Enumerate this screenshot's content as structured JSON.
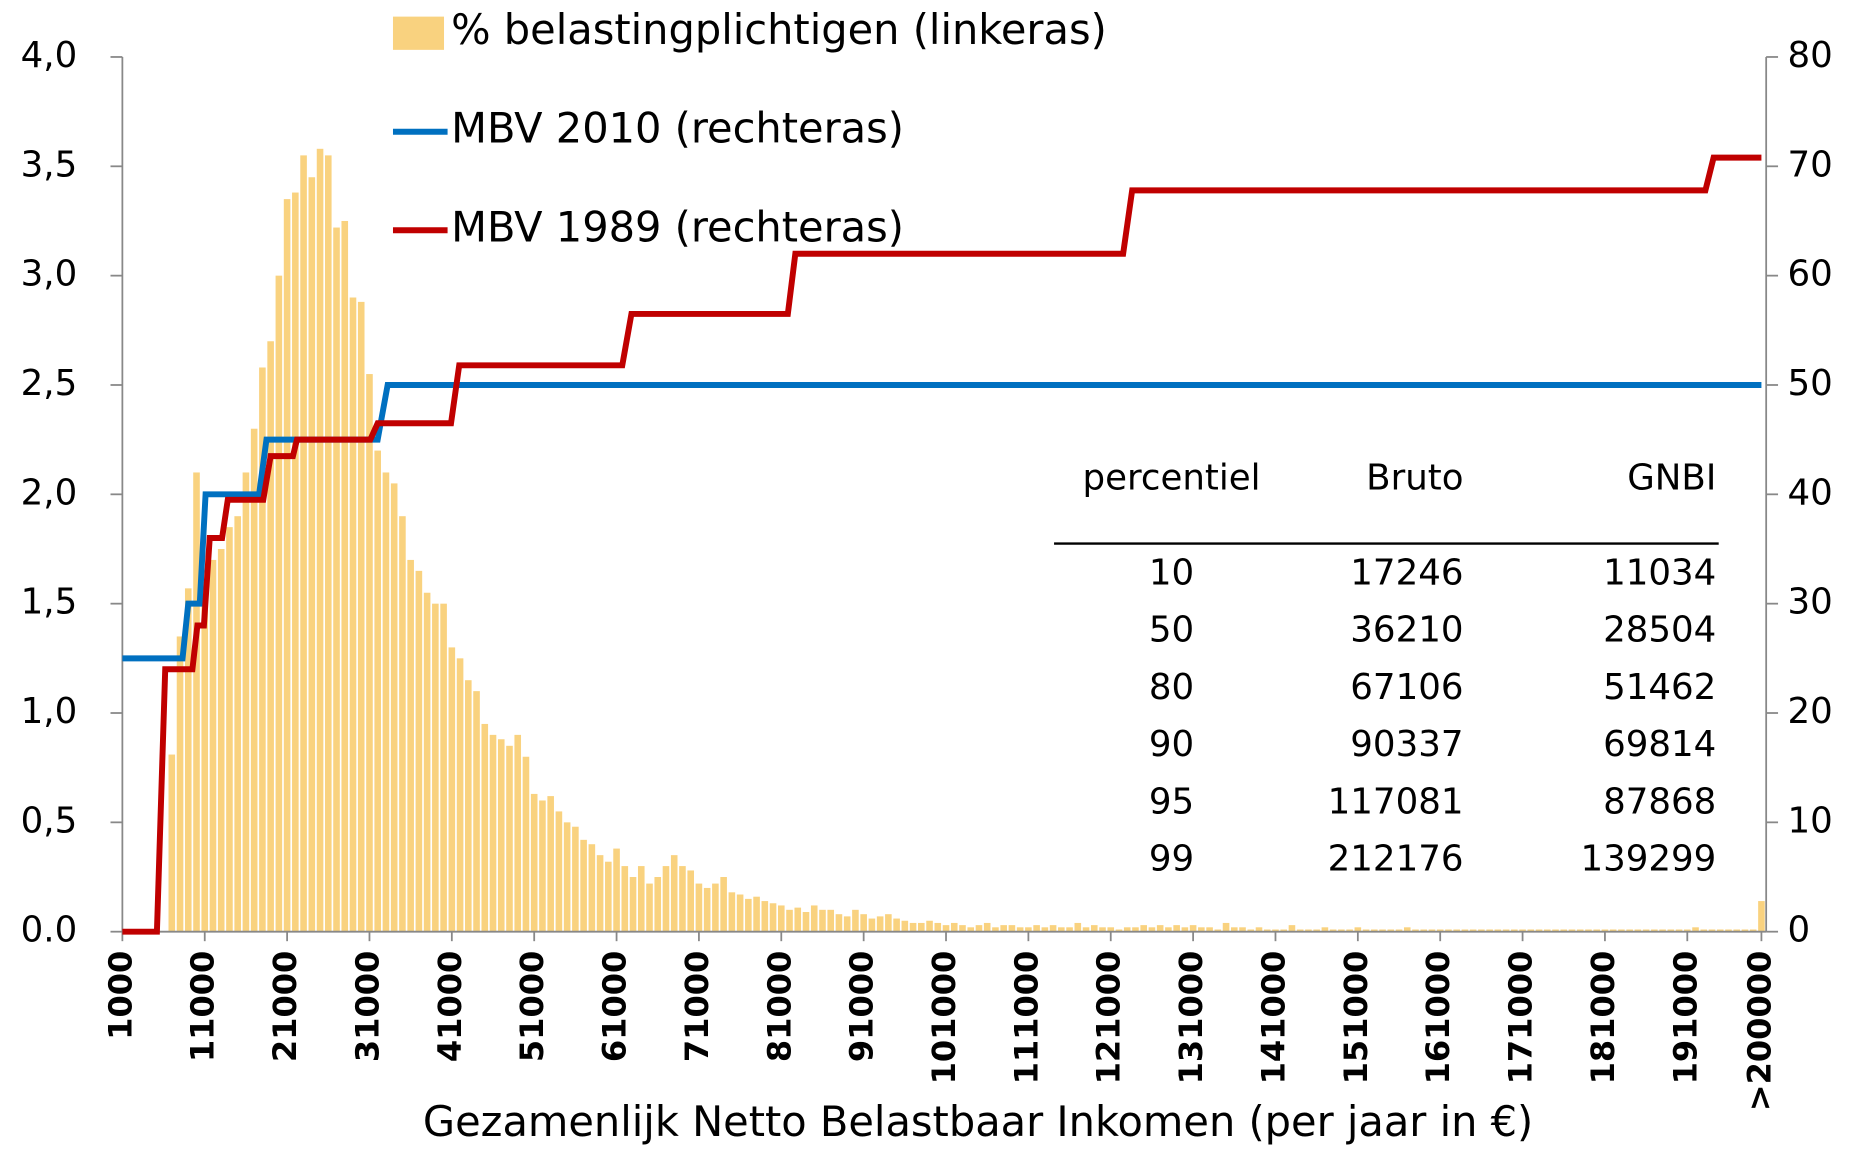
{
  "chart_data": {
    "type": "bar",
    "xlabel": "Gezamenlijk Netto Belastbaar Inkomen (per jaar in €)",
    "xlim": [
      1000,
      200000
    ],
    "xticks": [
      1000,
      11000,
      21000,
      31000,
      41000,
      51000,
      61000,
      71000,
      81000,
      91000,
      101000,
      111000,
      121000,
      131000,
      141000,
      151000,
      161000,
      171000,
      181000,
      191000,
      {
        "value": 200000,
        "label": ">200000"
      }
    ],
    "ylim": [
      0,
      4
    ],
    "yticks": [
      {
        "value": 0,
        "label": "0.0"
      },
      {
        "value": 0.5,
        "label": "0,5"
      },
      {
        "value": 1,
        "label": "1,0"
      },
      {
        "value": 1.5,
        "label": "1,5"
      },
      {
        "value": 2,
        "label": "2,0"
      },
      {
        "value": 2.5,
        "label": "2,5"
      },
      {
        "value": 3,
        "label": "3,0"
      },
      {
        "value": 3.5,
        "label": "3,5"
      },
      {
        "value": 4,
        "label": "4,0"
      }
    ],
    "y2lim": [
      0,
      80
    ],
    "y2ticks": [
      0,
      10,
      20,
      30,
      40,
      50,
      60,
      70,
      80
    ],
    "grid": false,
    "series": [
      {
        "name": "% belastingplichtigen (linkeras)",
        "type": "bar",
        "color": "#f9d27f",
        "x": [
          1000,
          2000,
          3000,
          4000,
          5000,
          6000,
          7000,
          8000,
          9000,
          10000,
          11000,
          12000,
          13000,
          14000,
          15000,
          16000,
          17000,
          18000,
          19000,
          20000,
          21000,
          22000,
          23000,
          24000,
          25000,
          26000,
          27000,
          28000,
          29000,
          30000,
          31000,
          32000,
          33000,
          34000,
          35000,
          36000,
          37000,
          38000,
          39000,
          40000,
          41000,
          42000,
          43000,
          44000,
          45000,
          46000,
          47000,
          48000,
          49000,
          50000,
          51000,
          52000,
          53000,
          54000,
          55000,
          56000,
          57000,
          58000,
          59000,
          60000,
          61000,
          62000,
          63000,
          64000,
          65000,
          66000,
          67000,
          68000,
          69000,
          70000,
          71000,
          72000,
          73000,
          74000,
          75000,
          76000,
          77000,
          78000,
          79000,
          80000,
          81000,
          82000,
          83000,
          84000,
          85000,
          86000,
          87000,
          88000,
          89000,
          90000,
          91000,
          92000,
          93000,
          94000,
          95000,
          96000,
          97000,
          98000,
          99000,
          100000,
          101000,
          102000,
          103000,
          104000,
          105000,
          106000,
          107000,
          108000,
          109000,
          110000,
          111000,
          112000,
          113000,
          114000,
          115000,
          116000,
          117000,
          118000,
          119000,
          120000,
          121000,
          122000,
          123000,
          124000,
          125000,
          126000,
          127000,
          128000,
          129000,
          130000,
          131000,
          132000,
          133000,
          134000,
          135000,
          136000,
          137000,
          138000,
          139000,
          140000,
          141000,
          142000,
          143000,
          144000,
          145000,
          146000,
          147000,
          148000,
          149000,
          150000,
          151000,
          152000,
          153000,
          154000,
          155000,
          156000,
          157000,
          158000,
          159000,
          160000,
          161000,
          162000,
          163000,
          164000,
          165000,
          166000,
          167000,
          168000,
          169000,
          170000,
          171000,
          172000,
          173000,
          174000,
          175000,
          176000,
          177000,
          178000,
          179000,
          180000,
          181000,
          182000,
          183000,
          184000,
          185000,
          186000,
          187000,
          188000,
          189000,
          190000,
          191000,
          192000,
          193000,
          194000,
          195000,
          196000,
          197000,
          198000,
          199000,
          200000
        ],
        "values": [
          0,
          0,
          0,
          0,
          0,
          0,
          0.81,
          1.35,
          1.57,
          2.1,
          1.6,
          1.7,
          1.75,
          1.85,
          1.9,
          2.1,
          2.3,
          2.58,
          2.7,
          3.0,
          3.35,
          3.38,
          3.55,
          3.45,
          3.58,
          3.55,
          3.22,
          3.25,
          2.9,
          2.88,
          2.55,
          2.2,
          2.1,
          2.05,
          1.9,
          1.7,
          1.65,
          1.55,
          1.5,
          1.5,
          1.3,
          1.25,
          1.15,
          1.1,
          0.95,
          0.9,
          0.88,
          0.85,
          0.9,
          0.8,
          0.63,
          0.6,
          0.62,
          0.55,
          0.5,
          0.48,
          0.42,
          0.4,
          0.35,
          0.32,
          0.38,
          0.3,
          0.25,
          0.3,
          0.22,
          0.25,
          0.3,
          0.35,
          0.3,
          0.28,
          0.22,
          0.2,
          0.22,
          0.25,
          0.18,
          0.17,
          0.15,
          0.16,
          0.14,
          0.13,
          0.12,
          0.1,
          0.11,
          0.09,
          0.12,
          0.1,
          0.1,
          0.08,
          0.07,
          0.1,
          0.08,
          0.06,
          0.07,
          0.08,
          0.06,
          0.05,
          0.04,
          0.04,
          0.05,
          0.04,
          0.03,
          0.04,
          0.03,
          0.02,
          0.03,
          0.04,
          0.02,
          0.03,
          0.03,
          0.02,
          0.02,
          0.03,
          0.02,
          0.03,
          0.02,
          0.02,
          0.04,
          0.02,
          0.03,
          0.02,
          0.02,
          0.01,
          0.02,
          0.02,
          0.03,
          0.02,
          0.03,
          0.02,
          0.03,
          0.02,
          0.03,
          0.02,
          0.02,
          0.01,
          0.04,
          0.02,
          0.02,
          0.01,
          0.02,
          0.01,
          0.01,
          0.01,
          0.03,
          0.01,
          0.01,
          0.01,
          0.02,
          0.01,
          0.01,
          0.01,
          0.02,
          0.01,
          0.01,
          0.01,
          0.01,
          0.01,
          0.02,
          0.01,
          0.01,
          0.01,
          0.01,
          0.01,
          0.01,
          0.01,
          0.01,
          0.01,
          0.01,
          0.01,
          0.01,
          0.01,
          0.01,
          0.01,
          0.01,
          0.01,
          0.01,
          0.01,
          0.01,
          0.01,
          0.01,
          0.01,
          0.01,
          0.01,
          0.01,
          0.01,
          0.01,
          0.01,
          0.01,
          0.01,
          0.01,
          0.01,
          0.01,
          0.02,
          0.01,
          0.01,
          0.01,
          0.01,
          0.01,
          0.01,
          0.01,
          0.14
        ]
      },
      {
        "name": "MBV 2010 (rechteras)",
        "type": "line",
        "axis": "y2",
        "color": "#0070c0",
        "x": [
          1000,
          8300,
          9000,
          10400,
          11100,
          17600,
          18500,
          32000,
          33200,
          200000
        ],
        "values": [
          25,
          25,
          30,
          30,
          40,
          40,
          45,
          45,
          50,
          50
        ]
      },
      {
        "name": "MBV 1989 (rechteras)",
        "type": "line",
        "axis": "y2",
        "color": "#c00000",
        "x": [
          1000,
          5200,
          6200,
          9500,
          10100,
          10900,
          11600,
          13100,
          13800,
          18100,
          19000,
          21700,
          22200,
          31100,
          32000,
          40900,
          41900,
          61700,
          62800,
          81800,
          82700,
          122500,
          123600,
          193200,
          194200,
          200000
        ],
        "values": [
          0,
          0,
          24,
          24,
          28,
          28,
          36,
          36,
          39.5,
          39.5,
          43.5,
          43.5,
          45,
          45,
          46.5,
          46.5,
          51.8,
          51.8,
          56.5,
          56.5,
          62,
          62,
          67.8,
          67.8,
          70.8,
          70.8
        ]
      }
    ],
    "table": {
      "header": [
        "percentiel",
        "Bruto",
        "GNBI"
      ],
      "rows": [
        [
          "10",
          "17246",
          "11034"
        ],
        [
          "50",
          "36210",
          "28504"
        ],
        [
          "80",
          "67106",
          "51462"
        ],
        [
          "90",
          "90337",
          "69814"
        ],
        [
          "95",
          "117081",
          "87868"
        ],
        [
          "99",
          "212176",
          "139299"
        ]
      ]
    }
  }
}
